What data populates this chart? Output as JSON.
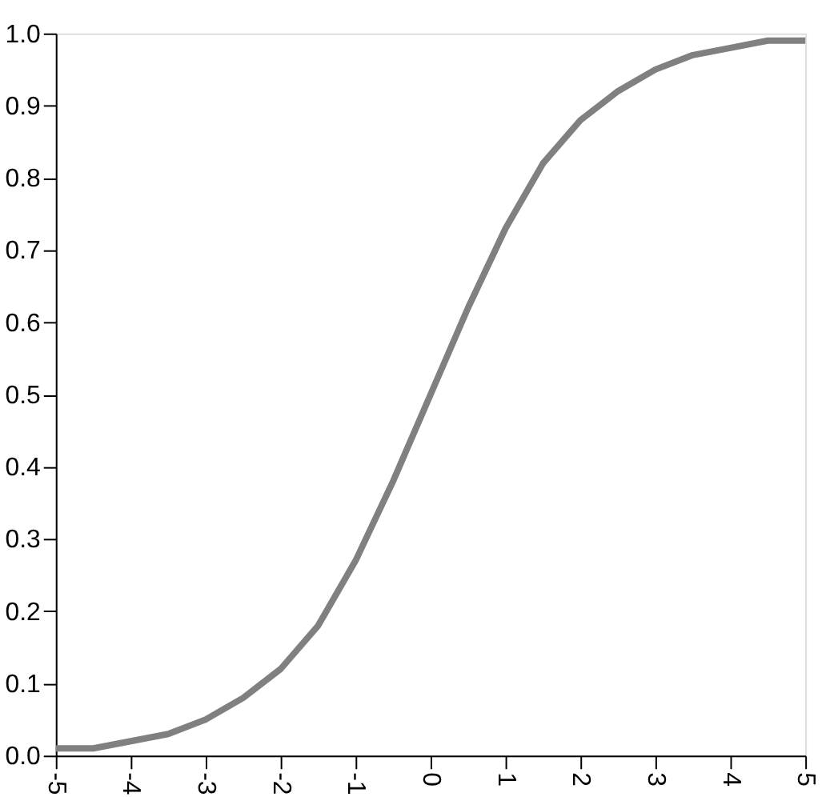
{
  "chart_data": {
    "type": "line",
    "x": [
      -5,
      -4.5,
      -4,
      -3.5,
      -3,
      -2.5,
      -2,
      -1.5,
      -1,
      -0.5,
      0,
      0.5,
      1,
      1.5,
      2,
      2.5,
      3,
      3.5,
      4,
      4.5,
      5
    ],
    "series": [
      {
        "color": "#808080",
        "values": [
          0.01,
          0.01,
          0.02,
          0.03,
          0.05,
          0.08,
          0.12,
          0.18,
          0.27,
          0.38,
          0.5,
          0.62,
          0.73,
          0.82,
          0.88,
          0.92,
          0.95,
          0.97,
          0.98,
          0.99,
          0.99
        ]
      }
    ],
    "xlim": [
      -5,
      5
    ],
    "xticks": [
      -5,
      -4,
      -3,
      -2,
      -1,
      0,
      1,
      2,
      3,
      4,
      5
    ],
    "ylim": [
      0,
      1
    ],
    "yticks": [
      {
        "value": 0,
        "label": "0.0"
      },
      0.1,
      0.2,
      0.3,
      0.4,
      0.5,
      0.6,
      0.7,
      0.8,
      0.9,
      {
        "value": 1,
        "label": "1.0"
      }
    ],
    "grid": false,
    "line_style": "solid",
    "marker": "none"
  }
}
